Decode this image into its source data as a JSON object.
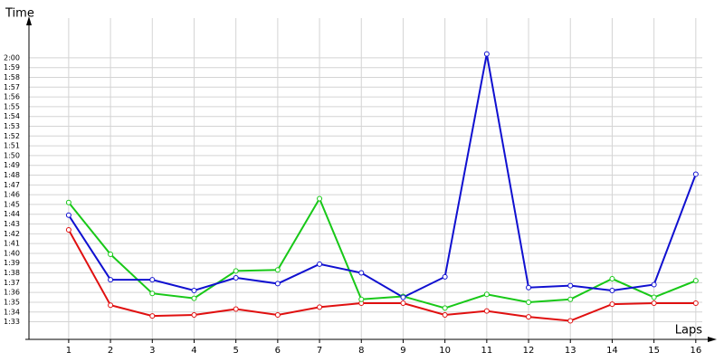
{
  "chart_data": {
    "type": "line",
    "y_label": "Time",
    "x_label": "Laps",
    "x": [
      1,
      2,
      3,
      4,
      5,
      6,
      7,
      8,
      9,
      10,
      11,
      12,
      13,
      14,
      15,
      16
    ],
    "series": [
      {
        "color": "#e01010",
        "values": [
          102.4,
          94.7,
          93.6,
          93.7,
          94.3,
          93.7,
          94.5,
          94.9,
          94.9,
          93.7,
          94.1,
          93.5,
          93.1,
          94.8,
          94.9,
          94.9
        ]
      },
      {
        "color": "#18c818",
        "values": [
          105.2,
          99.9,
          95.9,
          95.4,
          98.2,
          98.3,
          105.6,
          95.3,
          95.6,
          94.4,
          95.8,
          95.0,
          95.3,
          97.4,
          95.5,
          97.2
        ]
      },
      {
        "color": "#1010d0",
        "values": [
          103.9,
          97.3,
          97.3,
          96.2,
          97.5,
          96.9,
          98.9,
          98.0,
          95.5,
          97.6,
          120.4,
          96.5,
          96.7,
          96.2,
          96.8,
          108.1
        ]
      }
    ],
    "xlim": [
      0.05,
      16.35
    ],
    "xticks": [
      1,
      2,
      3,
      4,
      5,
      6,
      7,
      8,
      9,
      10,
      11,
      12,
      13,
      14,
      15,
      16
    ],
    "ylim": [
      91.2,
      123.6
    ],
    "yticks": [
      {
        "value": 93,
        "label": "1:33"
      },
      {
        "value": 94,
        "label": "1:34"
      },
      {
        "value": 95,
        "label": "1:35"
      },
      {
        "value": 96,
        "label": "1:36"
      },
      {
        "value": 97,
        "label": "1:37"
      },
      {
        "value": 98,
        "label": "1:38"
      },
      {
        "value": 99,
        "label": "1:39"
      },
      {
        "value": 100,
        "label": "1:40"
      },
      {
        "value": 101,
        "label": "1:41"
      },
      {
        "value": 102,
        "label": "1:42"
      },
      {
        "value": 103,
        "label": "1:43"
      },
      {
        "value": 104,
        "label": "1:44"
      },
      {
        "value": 105,
        "label": "1:45"
      },
      {
        "value": 106,
        "label": "1:46"
      },
      {
        "value": 107,
        "label": "1:47"
      },
      {
        "value": 108,
        "label": "1:48"
      },
      {
        "value": 109,
        "label": "1:49"
      },
      {
        "value": 110,
        "label": "1:50"
      },
      {
        "value": 111,
        "label": "1:51"
      },
      {
        "value": 112,
        "label": "1:52"
      },
      {
        "value": 113,
        "label": "1:53"
      },
      {
        "value": 114,
        "label": "1:54"
      },
      {
        "value": 115,
        "label": "1:55"
      },
      {
        "value": 116,
        "label": "1:56"
      },
      {
        "value": 117,
        "label": "1:57"
      },
      {
        "value": 118,
        "label": "1:58"
      },
      {
        "value": 119,
        "label": "1:59"
      },
      {
        "value": 120,
        "label": "2:00"
      }
    ],
    "grid": true
  }
}
